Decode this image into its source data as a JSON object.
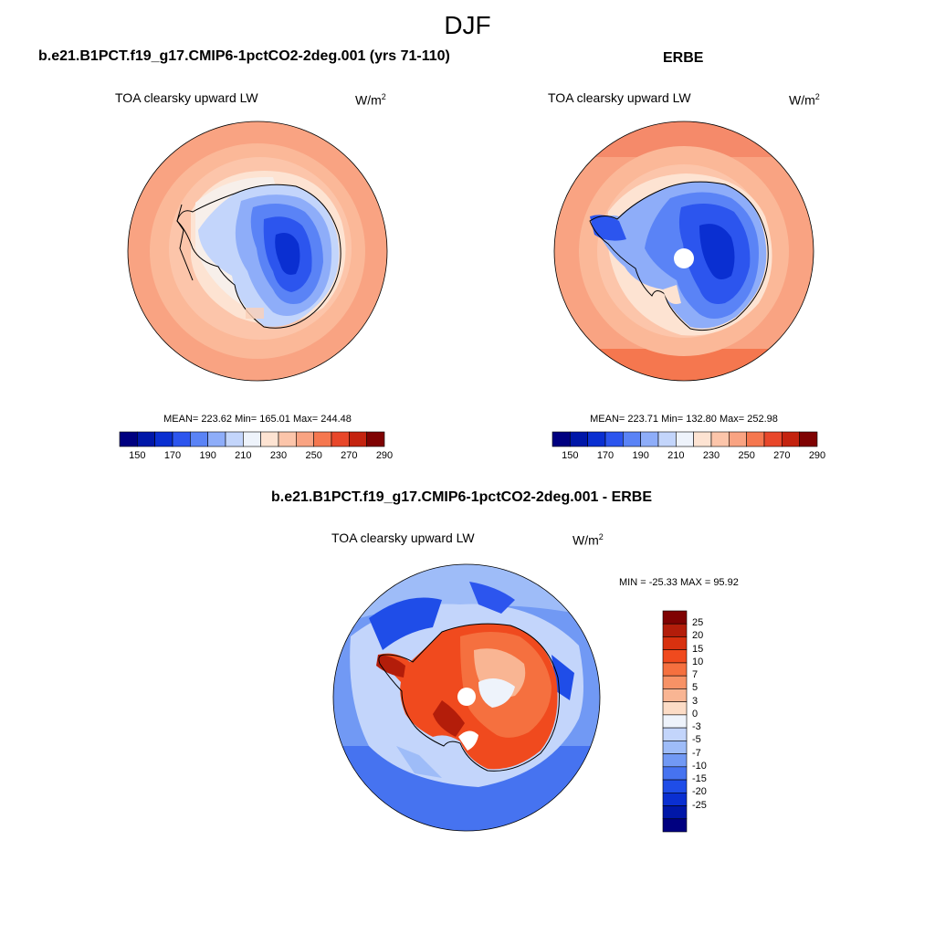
{
  "page": {
    "title": "DJF"
  },
  "panels": [
    {
      "id": "model",
      "title": "b.e21.B1PCT.f19_g17.CMIP6-1pctCO2-2deg.001 (yrs 71-110)",
      "variable": "TOA clearsky upward LW",
      "units_base": "W/m",
      "units_exp": "2",
      "stats": "MEAN= 223.62  Min= 165.01  Max= 244.48",
      "pole_hole": false
    },
    {
      "id": "obs",
      "title": "ERBE",
      "variable": "TOA clearsky upward LW",
      "units_base": "W/m",
      "units_exp": "2",
      "stats": "MEAN= 223.71  Min= 132.80  Max= 252.98",
      "pole_hole": true
    },
    {
      "id": "diff",
      "title": "b.e21.B1PCT.f19_g17.CMIP6-1pctCO2-2deg.001 - ERBE",
      "variable": "TOA clearsky upward LW",
      "units_base": "W/m",
      "units_exp": "2",
      "stats": "MIN = -25.33 MAX =  95.92",
      "pole_hole": true
    }
  ],
  "colorbars": {
    "horizontal": {
      "colors": [
        "#000080",
        "#0017a8",
        "#0a2fd1",
        "#2c55ee",
        "#5a83f6",
        "#8eadf9",
        "#c3d5fb",
        "#eef3fb",
        "#fde3d2",
        "#fcc5aa",
        "#f9a382",
        "#f5774f",
        "#e8472a",
        "#c4230f",
        "#7f0202"
      ],
      "labels": [
        "150",
        "170",
        "190",
        "210",
        "230",
        "250",
        "270",
        "290"
      ]
    },
    "vertical": {
      "colors": [
        "#7f0202",
        "#b31d0a",
        "#d8310f",
        "#f04a1e",
        "#f5703f",
        "#f79266",
        "#f9b593",
        "#fcdcc6",
        "#eef3fb",
        "#c3d5fb",
        "#9ebcf8",
        "#7199f4",
        "#4673f0",
        "#1f4de8",
        "#0a2fd1",
        "#0017a8",
        "#000080"
      ],
      "labels": [
        "25",
        "20",
        "15",
        "10",
        "7",
        "5",
        "3",
        "0",
        "-3",
        "-5",
        "-7",
        "-10",
        "-15",
        "-20",
        "-25"
      ]
    }
  }
}
